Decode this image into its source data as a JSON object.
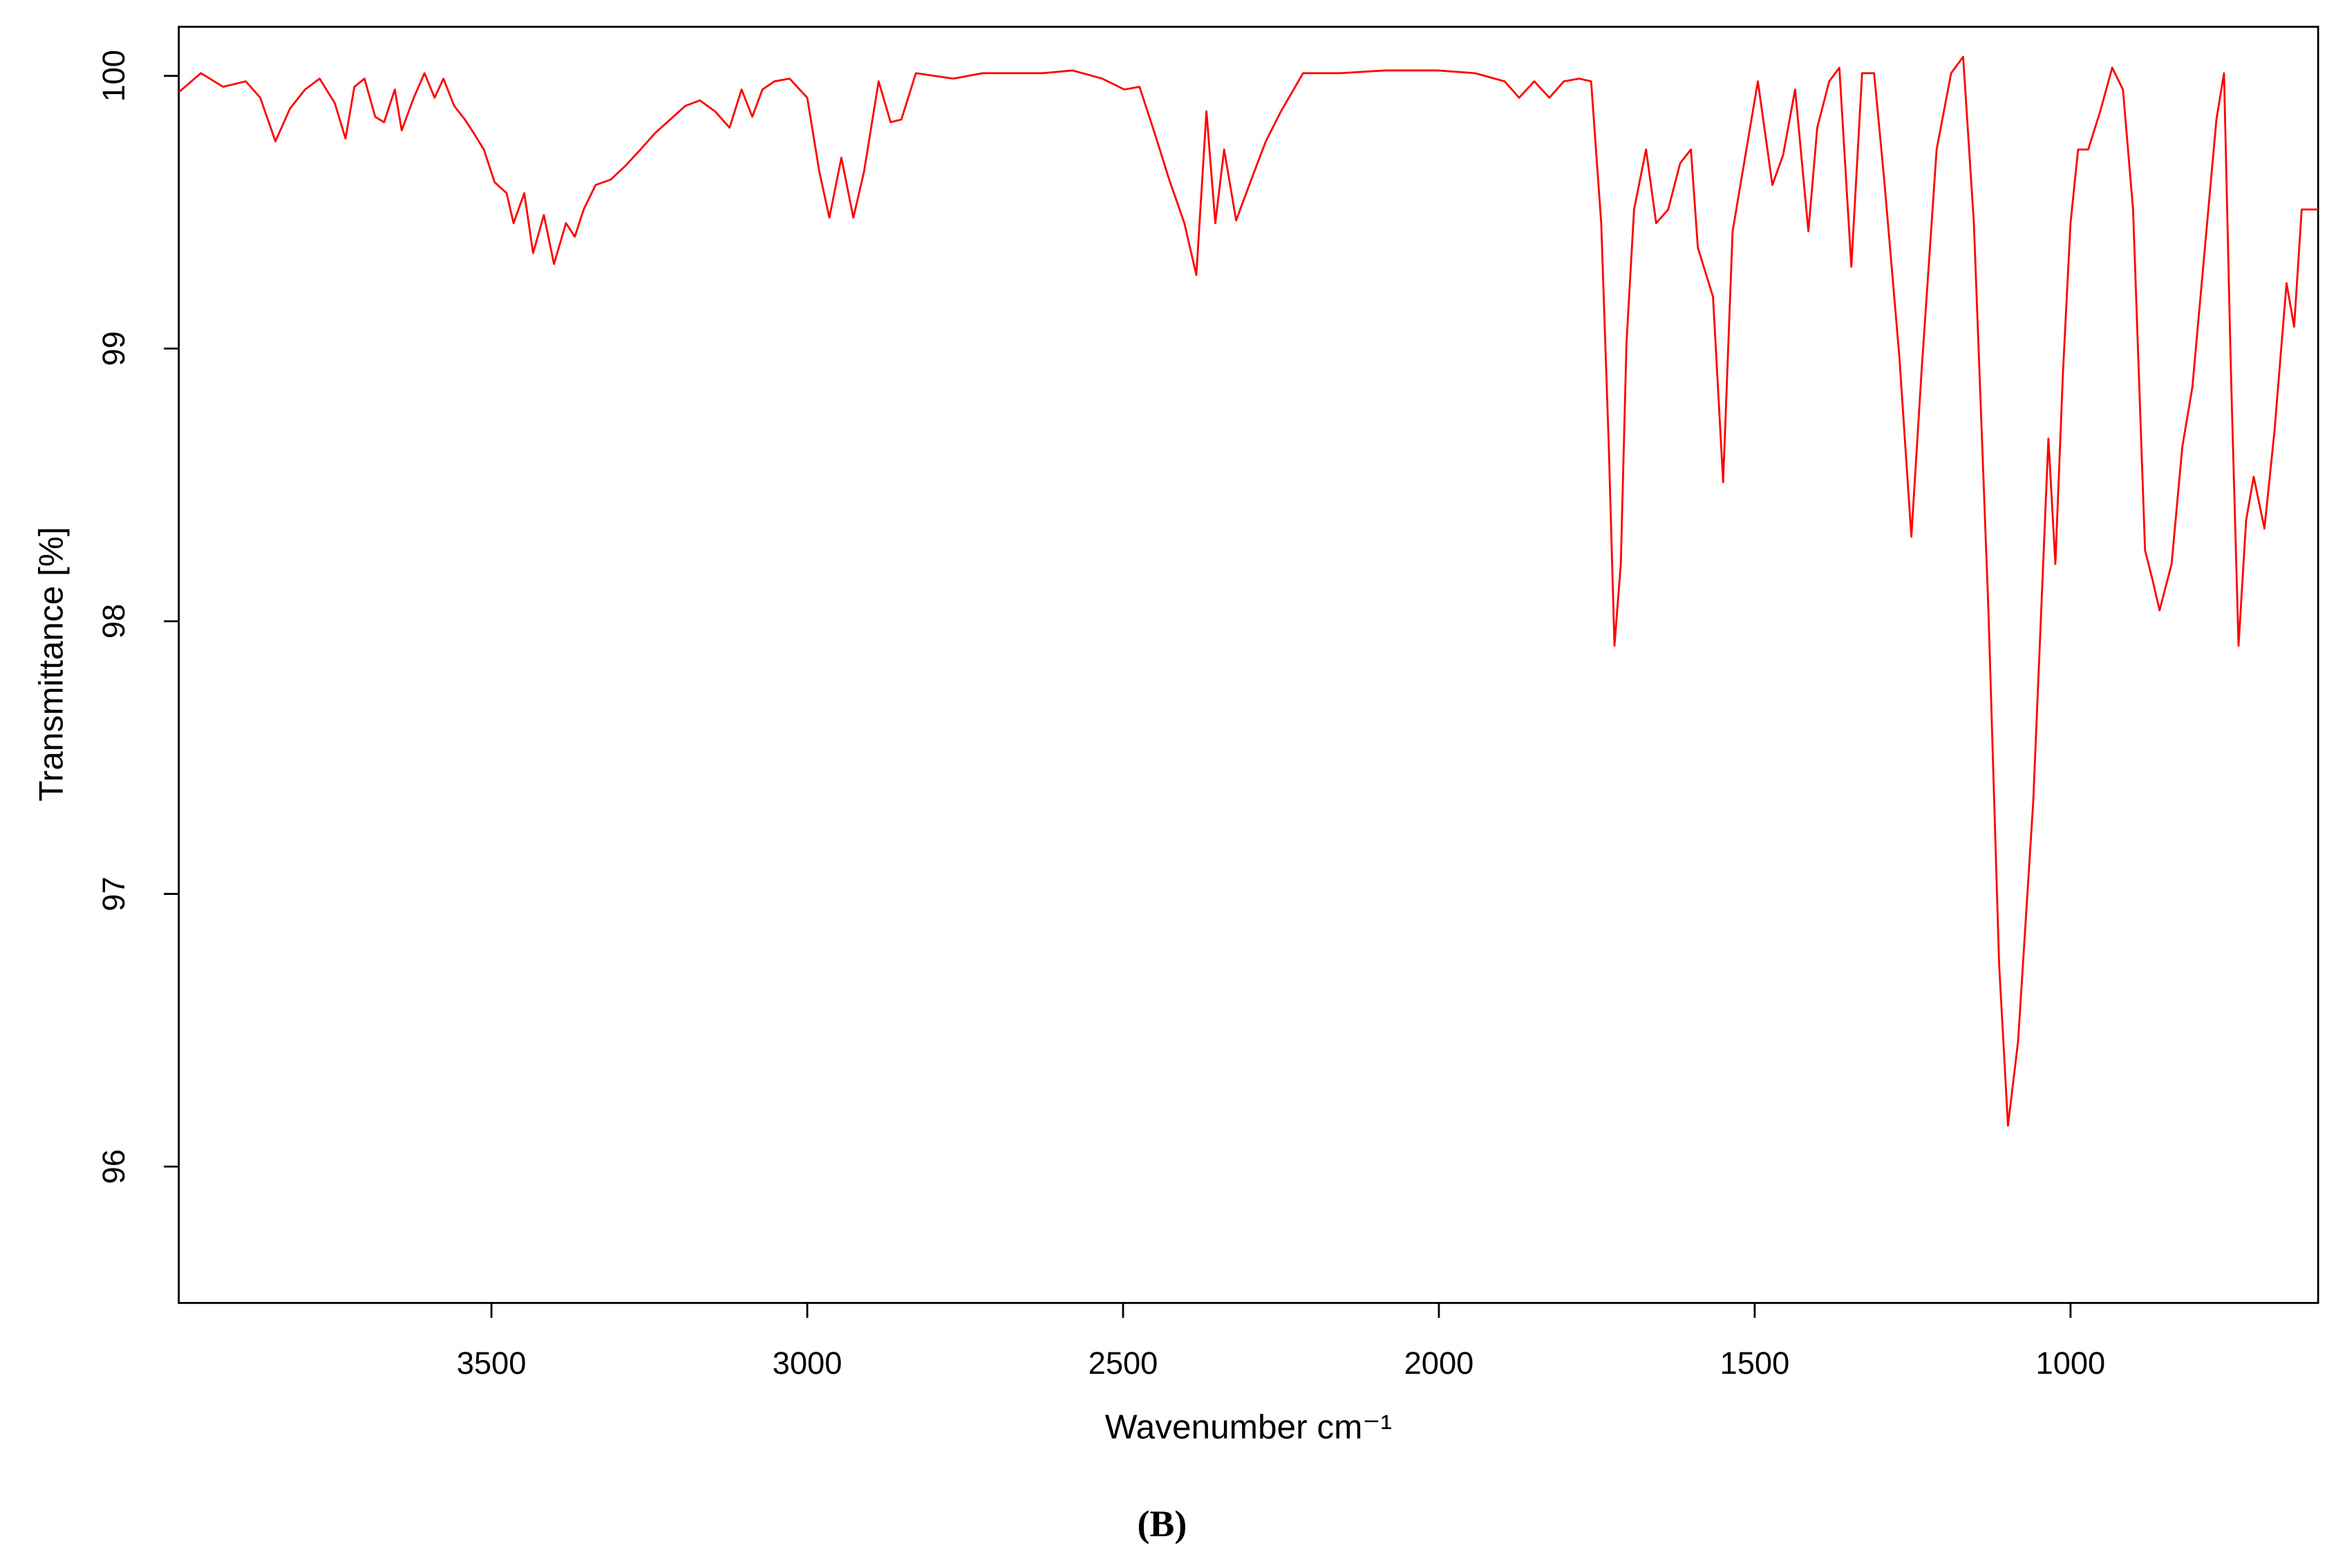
{
  "chart_data": {
    "type": "line",
    "caption": "(B)",
    "x_label": "Wavenumber cm⁻¹",
    "y_label": "Transmittance [%]",
    "xlim": [
      3995,
      608
    ],
    "ylim": [
      95.5,
      100.18
    ],
    "xticks": [
      3500,
      3000,
      2500,
      2000,
      1500,
      1000
    ],
    "yticks": [
      96,
      97,
      98,
      99,
      100
    ],
    "series": [
      {
        "color": "#ff0000",
        "x": [
          3995,
          3960,
          3925,
          3889,
          3866,
          3842,
          3819,
          3795,
          3772,
          3748,
          3731,
          3717,
          3701,
          3684,
          3670,
          3653,
          3642,
          3623,
          3606,
          3590,
          3576,
          3559,
          3542,
          3528,
          3512,
          3495,
          3476,
          3465,
          3448,
          3434,
          3417,
          3401,
          3382,
          3368,
          3354,
          3335,
          3311,
          3288,
          3264,
          3241,
          3217,
          3193,
          3170,
          3146,
          3123,
          3104,
          3087,
          3071,
          3052,
          3028,
          3012,
          3000,
          2981,
          2965,
          2946,
          2927,
          2910,
          2887,
          2868,
          2851,
          2828,
          2769,
          2722,
          2675,
          2627,
          2580,
          2533,
          2498,
          2474,
          2450,
          2427,
          2403,
          2384,
          2368,
          2354,
          2340,
          2321,
          2297,
          2274,
          2250,
          2215,
          2156,
          2085,
          2002,
          1943,
          1896,
          1873,
          1849,
          1825,
          1802,
          1778,
          1759,
          1743,
          1731,
          1722,
          1712,
          1703,
          1691,
          1672,
          1656,
          1637,
          1618,
          1601,
          1590,
          1566,
          1550,
          1535,
          1519,
          1495,
          1472,
          1455,
          1436,
          1415,
          1401,
          1382,
          1366,
          1347,
          1330,
          1311,
          1295,
          1271,
          1252,
          1236,
          1212,
          1189,
          1170,
          1153,
          1130,
          1113,
          1099,
          1083,
          1059,
          1035,
          1024,
          1012,
          1000,
          988,
          972,
          953,
          934,
          917,
          901,
          882,
          870,
          859,
          840,
          823,
          807,
          788,
          769,
          757,
          746,
          734,
          722,
          710,
          693,
          677,
          658,
          646,
          634,
          623,
          608
        ],
        "values": [
          99.94,
          100.01,
          99.96,
          99.98,
          99.92,
          99.76,
          99.88,
          99.95,
          99.99,
          99.9,
          99.77,
          99.96,
          99.99,
          99.85,
          99.83,
          99.95,
          99.8,
          99.92,
          100.01,
          99.92,
          99.99,
          99.89,
          99.84,
          99.79,
          99.73,
          99.61,
          99.57,
          99.46,
          99.57,
          99.35,
          99.49,
          99.31,
          99.46,
          99.41,
          99.51,
          99.6,
          99.62,
          99.67,
          99.73,
          99.79,
          99.84,
          99.89,
          99.91,
          99.87,
          99.81,
          99.95,
          99.85,
          99.95,
          99.98,
          99.99,
          99.95,
          99.92,
          99.65,
          99.48,
          99.7,
          99.48,
          99.65,
          99.98,
          99.83,
          99.84,
          100.01,
          99.99,
          100.01,
          100.01,
          100.01,
          100.02,
          99.99,
          99.95,
          99.96,
          99.79,
          99.62,
          99.46,
          99.27,
          99.87,
          99.46,
          99.73,
          99.47,
          99.62,
          99.76,
          99.87,
          100.01,
          100.01,
          100.02,
          100.02,
          100.01,
          99.98,
          99.92,
          99.98,
          99.92,
          99.98,
          99.99,
          99.98,
          99.46,
          98.64,
          97.91,
          98.21,
          99.02,
          99.51,
          99.73,
          99.46,
          99.51,
          99.68,
          99.73,
          99.37,
          99.19,
          98.51,
          99.43,
          99.65,
          99.98,
          99.6,
          99.71,
          99.95,
          99.43,
          99.81,
          99.98,
          100.03,
          99.3,
          100.01,
          100.01,
          99.62,
          98.97,
          98.31,
          98.91,
          99.73,
          100.01,
          100.07,
          99.46,
          98.04,
          96.74,
          96.15,
          96.46,
          97.34,
          98.67,
          98.21,
          98.91,
          99.46,
          99.73,
          99.73,
          99.87,
          100.03,
          99.95,
          99.51,
          98.26,
          98.15,
          98.04,
          98.21,
          98.64,
          98.86,
          99.35,
          99.84,
          100.01,
          98.91,
          97.91,
          98.37,
          98.53,
          98.34,
          98.7,
          99.24,
          99.08,
          99.51,
          99.51,
          99.51
        ]
      }
    ]
  }
}
